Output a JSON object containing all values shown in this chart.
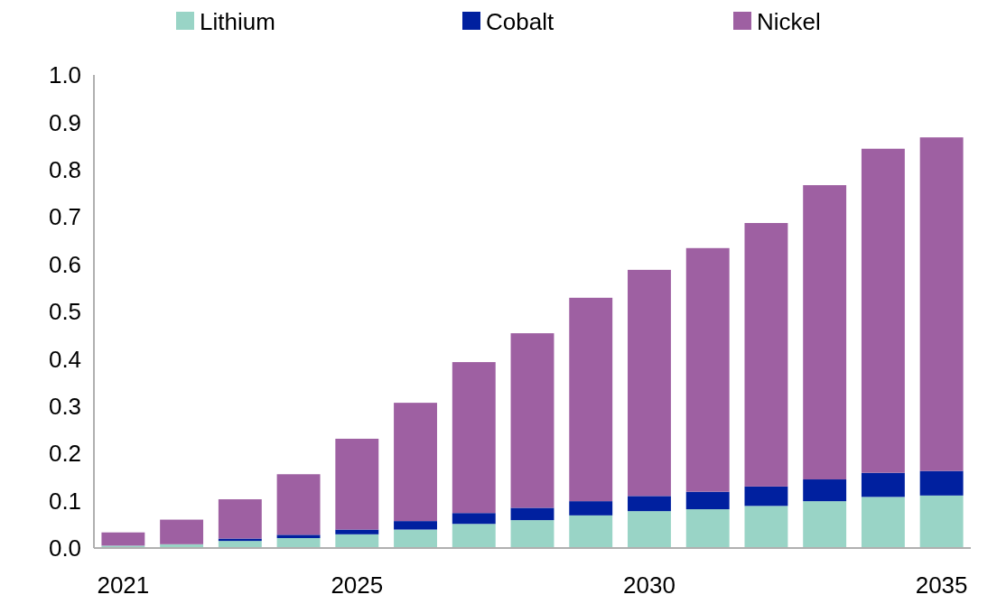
{
  "chart_data": {
    "type": "bar",
    "stacked": true,
    "categories": [
      "2021",
      null,
      null,
      null,
      "2025",
      null,
      null,
      null,
      null,
      "2030",
      null,
      null,
      null,
      null,
      "2035"
    ],
    "series": [
      {
        "name": "Lithium",
        "color": "#99d4c6",
        "values": [
          0.005,
          0.008,
          0.015,
          0.021,
          0.029,
          0.039,
          0.051,
          0.059,
          0.069,
          0.078,
          0.082,
          0.089,
          0.099,
          0.108,
          0.111
        ]
      },
      {
        "name": "Cobalt",
        "color": "#00209f",
        "values": [
          null,
          null,
          0.005,
          0.007,
          0.01,
          0.018,
          0.023,
          0.026,
          0.03,
          0.032,
          0.037,
          0.041,
          0.046,
          0.051,
          0.052
        ]
      },
      {
        "name": "Nickel",
        "color": "#9e60a2",
        "values": [
          0.028,
          0.052,
          0.083,
          0.128,
          0.192,
          0.25,
          0.319,
          0.369,
          0.43,
          0.478,
          0.515,
          0.557,
          0.622,
          0.685,
          0.705
        ]
      }
    ],
    "ylim": [
      0,
      1.0
    ],
    "yticks": [
      {
        "value": 0,
        "label": "0.0"
      },
      0.1,
      0.2,
      0.3,
      0.4,
      0.5,
      0.6,
      0.7,
      0.8,
      0.9,
      {
        "value": 1,
        "label": "1.0"
      }
    ],
    "legend": "top",
    "grid": false
  }
}
